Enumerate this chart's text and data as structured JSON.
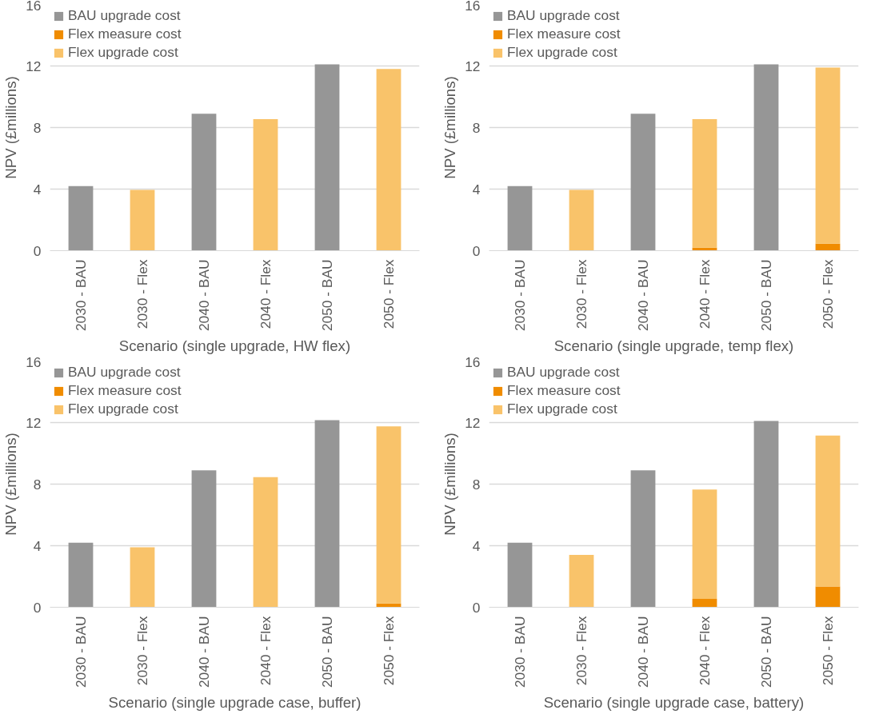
{
  "chart_data": [
    {
      "type": "bar",
      "stacked": true,
      "xlabel": "Scenario (single upgrade, HW flex)",
      "ylabel": "NPV (£millions)",
      "categories": [
        "2030 - BAU",
        "2030 - Flex",
        "2040 - BAU",
        "2040 - Flex",
        "2050 - BAU",
        "2050 - Flex"
      ],
      "ylim": [
        0,
        16
      ],
      "yticks": [
        0,
        4,
        8,
        12,
        16
      ],
      "grid": "y",
      "legend": "top left",
      "series": [
        {
          "name": "BAU upgrade cost",
          "color": "#969696",
          "values": [
            4.2,
            null,
            8.9,
            null,
            12.1,
            null
          ]
        },
        {
          "name": "Flex measure cost",
          "color": "#f08c00",
          "values": [
            null,
            0,
            null,
            0,
            null,
            0
          ]
        },
        {
          "name": "Flex upgrade cost",
          "color": "#f9c36a",
          "values": [
            null,
            3.95,
            null,
            8.55,
            null,
            11.8
          ]
        }
      ]
    },
    {
      "type": "bar",
      "stacked": true,
      "xlabel": "Scenario (single upgrade, temp flex)",
      "ylabel": "NPV (£millions)",
      "categories": [
        "2030 - BAU",
        "2030 - Flex",
        "2040 - BAU",
        "2040 - Flex",
        "2050 - BAU",
        "2050 - Flex"
      ],
      "ylim": [
        0,
        16
      ],
      "yticks": [
        0,
        4,
        8,
        12,
        16
      ],
      "grid": "y",
      "legend": "top left",
      "series": [
        {
          "name": "BAU upgrade cost",
          "color": "#969696",
          "values": [
            4.2,
            null,
            8.9,
            null,
            12.1,
            null
          ]
        },
        {
          "name": "Flex measure cost",
          "color": "#f08c00",
          "values": [
            null,
            0,
            null,
            0.2,
            null,
            0.45
          ]
        },
        {
          "name": "Flex upgrade cost",
          "color": "#f9c36a",
          "values": [
            null,
            3.95,
            null,
            8.35,
            null,
            11.45
          ]
        }
      ]
    },
    {
      "type": "bar",
      "stacked": true,
      "xlabel": "Scenario (single upgrade case, buffer)",
      "ylabel": "NPV (£millions)",
      "categories": [
        "2030 - BAU",
        "2030 - Flex",
        "2040 - BAU",
        "2040 - Flex",
        "2050 - BAU",
        "2050 - Flex"
      ],
      "ylim": [
        0,
        16
      ],
      "yticks": [
        0,
        4,
        8,
        12,
        16
      ],
      "grid": "y",
      "legend": "top left",
      "series": [
        {
          "name": "BAU upgrade cost",
          "color": "#969696",
          "values": [
            4.2,
            null,
            8.9,
            null,
            12.15,
            null
          ]
        },
        {
          "name": "Flex measure cost",
          "color": "#f08c00",
          "values": [
            null,
            0,
            null,
            0,
            null,
            0.25
          ]
        },
        {
          "name": "Flex upgrade cost",
          "color": "#f9c36a",
          "values": [
            null,
            3.9,
            null,
            8.45,
            null,
            11.5
          ]
        }
      ]
    },
    {
      "type": "bar",
      "stacked": true,
      "xlabel": "Scenario (single upgrade case, battery)",
      "ylabel": "NPV (£millions)",
      "categories": [
        "2030 - BAU",
        "2030 - Flex",
        "2040 - BAU",
        "2040 - Flex",
        "2050 - BAU",
        "2050 - Flex"
      ],
      "ylim": [
        0,
        16
      ],
      "yticks": [
        0,
        4,
        8,
        12,
        16
      ],
      "grid": "y",
      "legend": "top left",
      "series": [
        {
          "name": "BAU upgrade cost",
          "color": "#969696",
          "values": [
            4.2,
            null,
            8.9,
            null,
            12.1,
            null
          ]
        },
        {
          "name": "Flex measure cost",
          "color": "#f08c00",
          "values": [
            null,
            0,
            null,
            0.55,
            null,
            1.35
          ]
        },
        {
          "name": "Flex upgrade cost",
          "color": "#f9c36a",
          "values": [
            null,
            3.4,
            null,
            7.1,
            null,
            9.8
          ]
        }
      ]
    }
  ]
}
